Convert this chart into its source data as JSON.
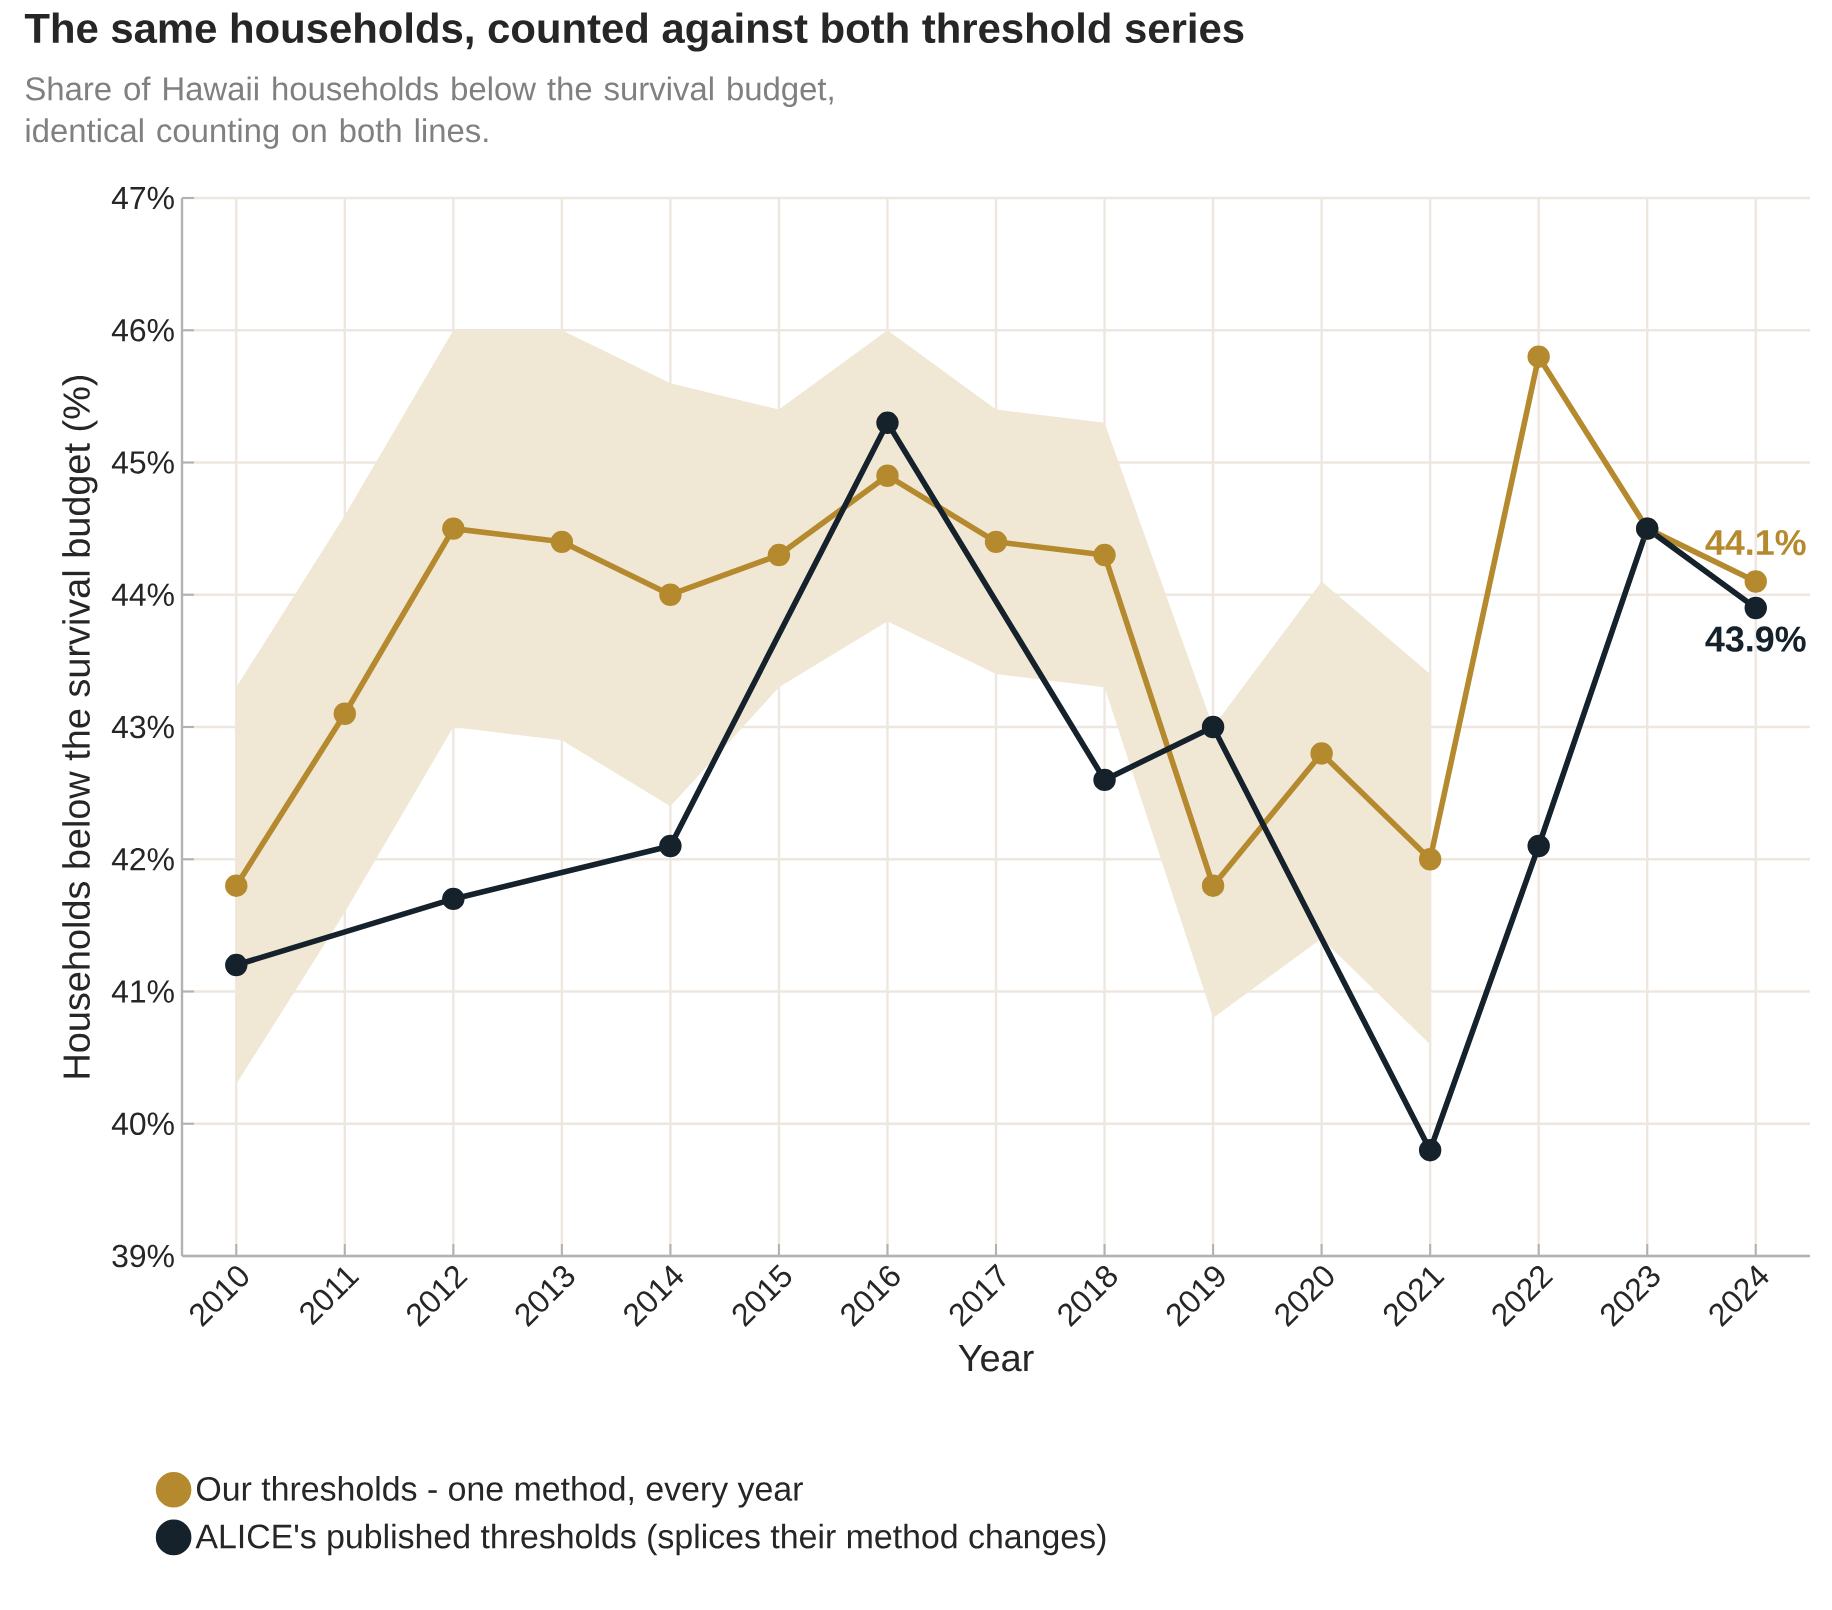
{
  "chart_data": {
    "type": "line",
    "title": "The same households, counted against both threshold series",
    "subtitle": "Share of Hawaii households below the survival budget,\nidentical counting on both lines.",
    "xlabel": "Year",
    "ylabel": "Households below the survival budget (%)",
    "xlim": [
      2009.5,
      2024.5
    ],
    "xticks": [
      2010,
      2011,
      2012,
      2013,
      2014,
      2015,
      2016,
      2017,
      2018,
      2019,
      2020,
      2021,
      2022,
      2023,
      2024
    ],
    "ylim": [
      39,
      47
    ],
    "yticks": [
      {
        "value": 39,
        "label": "39%"
      },
      {
        "value": 40,
        "label": "40%"
      },
      {
        "value": 41,
        "label": "41%"
      },
      {
        "value": 42,
        "label": "42%"
      },
      {
        "value": 43,
        "label": "43%"
      },
      {
        "value": 44,
        "label": "44%"
      },
      {
        "value": 45,
        "label": "45%"
      },
      {
        "value": 46,
        "label": "46%"
      },
      {
        "value": 47,
        "label": "47%"
      }
    ],
    "grid": true,
    "legend": "bottom",
    "marker": "circle",
    "line_style": "solid",
    "series": [
      {
        "name": "Our thresholds - one method, every year",
        "color": "#b5892e",
        "x": [
          2010,
          2011,
          2012,
          2013,
          2014,
          2015,
          2016,
          2017,
          2018,
          2019,
          2020,
          2021,
          2022,
          2023,
          2024
        ],
        "values": [
          41.8,
          43.1,
          44.5,
          44.4,
          44.0,
          44.3,
          44.9,
          44.4,
          44.3,
          41.8,
          42.8,
          42.0,
          45.8,
          44.5,
          44.1
        ],
        "lower": [
          40.3,
          41.6,
          43.0,
          42.9,
          42.4,
          43.3,
          43.8,
          43.4,
          43.3,
          40.8,
          41.4,
          40.6,
          null,
          null,
          null
        ],
        "upper": [
          43.3,
          44.6,
          46.0,
          46.0,
          45.6,
          45.4,
          46.0,
          45.4,
          45.3,
          43.0,
          44.1,
          43.4,
          null,
          null,
          null
        ],
        "value_labels": [
          null,
          null,
          null,
          null,
          null,
          null,
          null,
          null,
          null,
          null,
          null,
          null,
          null,
          null,
          "44.1%"
        ]
      },
      {
        "name": "ALICE's published thresholds (splices their method changes)",
        "color": "#15212b",
        "x": [
          2010,
          2012,
          2014,
          2016,
          2018,
          2019,
          2021,
          2022,
          2023,
          2024
        ],
        "values": [
          41.2,
          41.7,
          42.1,
          45.3,
          42.6,
          43.0,
          39.8,
          42.1,
          44.5,
          43.9
        ],
        "value_labels": [
          null,
          null,
          null,
          null,
          null,
          null,
          null,
          null,
          null,
          "43.9%"
        ]
      }
    ]
  }
}
